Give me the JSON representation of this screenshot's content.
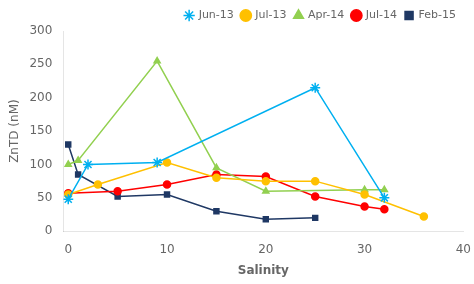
{
  "chart_data": {
    "type": "line",
    "xlabel": "Salinity",
    "ylabel": "ZnTD (nM)",
    "xlim": [
      -0.5,
      40
    ],
    "ylim": [
      0,
      300
    ],
    "xticks": [
      0,
      10,
      20,
      30,
      40
    ],
    "yticks": [
      0,
      50,
      100,
      150,
      200,
      250,
      300
    ],
    "grid": false,
    "legend": "upper right",
    "series": [
      {
        "name": "Jun-13",
        "color": "#00B0F0",
        "marker": "star",
        "x": [
          0,
          2,
          9,
          25,
          32
        ],
        "values": [
          48,
          100,
          103,
          215,
          50
        ]
      },
      {
        "name": "Jul-13",
        "color": "#FFC000",
        "marker": "circle",
        "x": [
          0,
          3,
          10,
          15,
          20,
          25,
          30,
          36
        ],
        "values": [
          55,
          70,
          103,
          80,
          75,
          75,
          55,
          22
        ]
      },
      {
        "name": "Apr-14",
        "color": "#92D050",
        "marker": "triangle",
        "x": [
          0,
          1,
          9,
          15,
          20,
          30,
          32
        ],
        "values": [
          100,
          106,
          255,
          95,
          60,
          62,
          62
        ]
      },
      {
        "name": "Jul-14",
        "color": "#FF0000",
        "marker": "circle",
        "x": [
          0,
          5,
          10,
          15,
          20,
          25,
          30,
          32
        ],
        "values": [
          57,
          60,
          70,
          85,
          82,
          52,
          37,
          33
        ]
      },
      {
        "name": "Feb-15",
        "color": "#1F3864",
        "marker": "square",
        "x": [
          0,
          1,
          5,
          10,
          15,
          20,
          25
        ],
        "values": [
          130,
          85,
          52,
          55,
          30,
          18,
          20
        ]
      }
    ]
  }
}
